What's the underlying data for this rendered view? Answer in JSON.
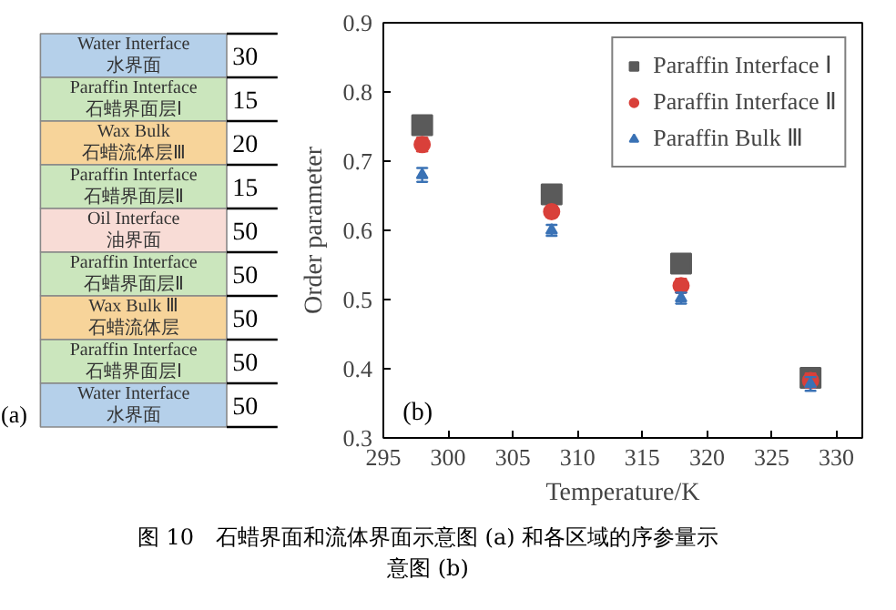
{
  "chart_data": [
    {
      "type": "other",
      "annotations": [
        "(a)"
      ],
      "categories": [
        "Water Interface\n水界面",
        "Paraffin Interface\n石蜡界面层Ⅰ",
        "Wax Bulk\n石蜡流体层Ⅲ",
        "Paraffin Interface\n石蜡界面层Ⅱ",
        "Oil Interface\n油界面",
        "Paraffin Interface\n石蜡界面层Ⅱ",
        "Wax Bulk Ⅲ\n石蜡流体层",
        "Paraffin Interface\n石蜡界面层Ⅰ",
        "Water Interface\n水界面"
      ],
      "values": [
        30,
        15,
        20,
        15,
        50,
        50,
        50,
        50,
        50
      ],
      "colors": [
        "#b5d0ea",
        "#cbe6bd",
        "#f7d49a",
        "#cbe6bd",
        "#f8dcd6",
        "#cbe6bd",
        "#f7d49a",
        "#cbe6bd",
        "#b5d0ea"
      ],
      "data_labels": true
    },
    {
      "type": "scatter",
      "xlabel": "Temperature/K",
      "ylabel": "Order parameter",
      "x": [
        298,
        308,
        318,
        328
      ],
      "xlim": [
        295,
        332
      ],
      "xticks": [
        295,
        300,
        305,
        310,
        315,
        320,
        325,
        330
      ],
      "ylim": [
        0.3,
        0.9
      ],
      "yticks": [
        0.3,
        0.4,
        0.5,
        0.6,
        0.7,
        0.8,
        0.9
      ],
      "legend": "top right",
      "grid": false,
      "annotations": [
        "(b)",
        "图 10　石蜡界面和流体界面示意图 (a) 和各区域的序参量示意图 (b)"
      ],
      "series": [
        {
          "name": "Paraffin Interface Ⅰ",
          "color": "#5a5a5a",
          "marker": "square",
          "values": [
            0.752,
            0.652,
            0.552,
            0.387
          ],
          "errors": [
            0.012,
            0.012,
            0.012,
            0.012
          ]
        },
        {
          "name": "Paraffin Interface Ⅱ",
          "color": "#d9403a",
          "marker": "circle",
          "values": [
            0.724,
            0.627,
            0.52,
            0.383
          ],
          "errors": [
            0.01,
            0.008,
            0.01,
            0.01
          ]
        },
        {
          "name": "Paraffin Bulk Ⅲ",
          "color": "#3a72b5",
          "marker": "triangle",
          "values": [
            0.68,
            0.6,
            0.502,
            0.378
          ],
          "errors": [
            0.01,
            0.008,
            0.008,
            0.01
          ]
        }
      ]
    }
  ]
}
